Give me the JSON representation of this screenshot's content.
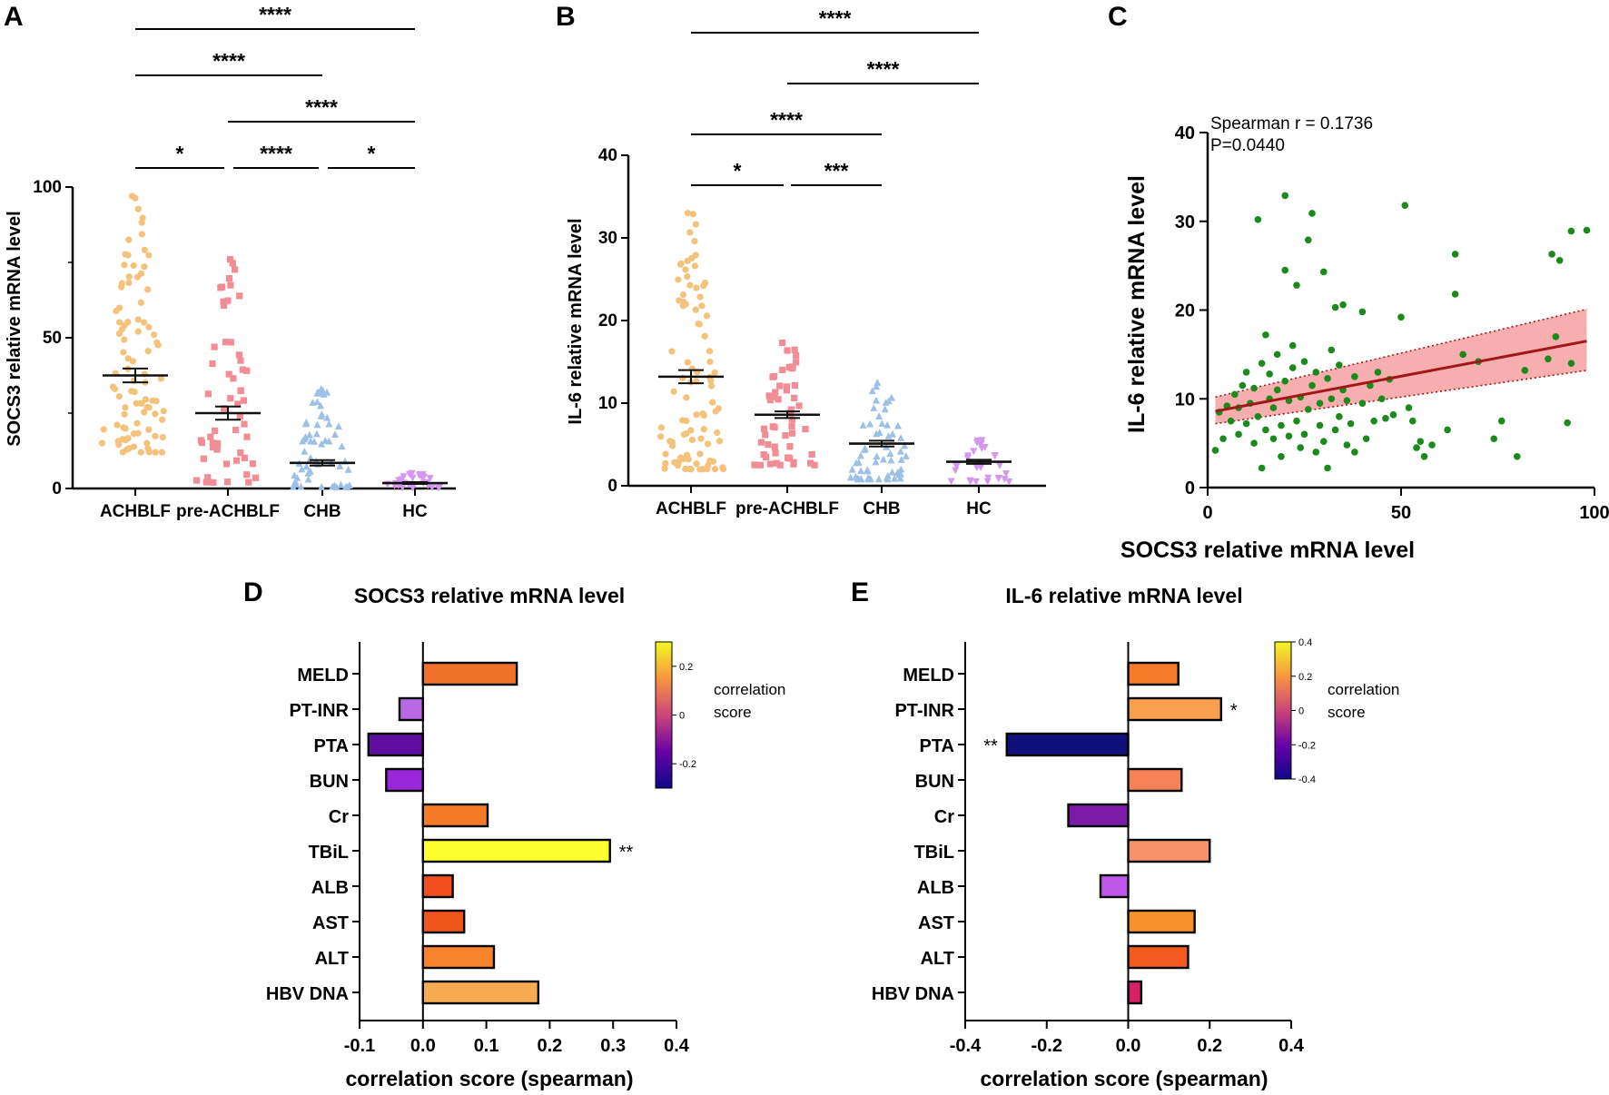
{
  "figure": {
    "panel_labels": [
      "A",
      "B",
      "C",
      "D",
      "E"
    ]
  },
  "chart_data": [
    {
      "panel": "A",
      "type": "scatter",
      "subtype": "dot-plot-mean-sem",
      "ylabel": "SOCS3  relative mRNA level",
      "ylim": [
        0,
        100
      ],
      "yticks": [
        0,
        50,
        100
      ],
      "categories": [
        "ACHBLF",
        "pre-ACHBLF",
        "CHB",
        "HC"
      ],
      "series": [
        {
          "name": "ACHBLF",
          "color": "#f4c27a",
          "marker": "circle",
          "n": 92,
          "mean": 37.5,
          "sem": 2.3,
          "min": 12,
          "max": 97
        },
        {
          "name": "pre-ACHBLF",
          "color": "#f28c95",
          "marker": "square",
          "n": 55,
          "mean": 25,
          "sem": 2.2,
          "min": 2,
          "max": 76
        },
        {
          "name": "CHB",
          "color": "#9dc0e6",
          "marker": "triangle",
          "n": 60,
          "mean": 8.5,
          "sem": 0.9,
          "min": 0.5,
          "max": 33
        },
        {
          "name": "HC",
          "color": "#d596f0",
          "marker": "triangle-down",
          "n": 30,
          "mean": 1.8,
          "sem": 0.3,
          "min": 0.2,
          "max": 5
        }
      ],
      "comparisons": [
        {
          "from": 0,
          "to": 3,
          "label": "****"
        },
        {
          "from": 0,
          "to": 2,
          "label": "****"
        },
        {
          "from": 1,
          "to": 3,
          "label": "****"
        },
        {
          "from": 0,
          "to": 1,
          "label": "*"
        },
        {
          "from": 1,
          "to": 2,
          "label": "****"
        },
        {
          "from": 2,
          "to": 3,
          "label": "*"
        }
      ]
    },
    {
      "panel": "B",
      "type": "scatter",
      "subtype": "dot-plot-mean-sem",
      "ylabel": "IL-6  relative mRNA level",
      "ylim": [
        0,
        40
      ],
      "yticks": [
        0,
        10,
        20,
        30,
        40
      ],
      "categories": [
        "ACHBLF",
        "pre-ACHBLF",
        "CHB",
        "HC"
      ],
      "series": [
        {
          "name": "ACHBLF",
          "color": "#f4c27a",
          "marker": "circle",
          "n": 92,
          "mean": 13.2,
          "sem": 0.8,
          "min": 2,
          "max": 33
        },
        {
          "name": "pre-ACHBLF",
          "color": "#f28c95",
          "marker": "square",
          "n": 55,
          "mean": 8.6,
          "sem": 0.4,
          "min": 2.5,
          "max": 17.3
        },
        {
          "name": "CHB",
          "color": "#9dc0e6",
          "marker": "triangle",
          "n": 60,
          "mean": 5.1,
          "sem": 0.35,
          "min": 0.8,
          "max": 12.5
        },
        {
          "name": "HC",
          "color": "#d596f0",
          "marker": "triangle-down",
          "n": 30,
          "mean": 2.9,
          "sem": 0.25,
          "min": 0.5,
          "max": 5.5
        }
      ],
      "comparisons": [
        {
          "from": 0,
          "to": 3,
          "label": "****"
        },
        {
          "from": 1,
          "to": 3,
          "label": "****"
        },
        {
          "from": 0,
          "to": 2,
          "label": "****"
        },
        {
          "from": 0,
          "to": 1,
          "label": "*"
        },
        {
          "from": 1,
          "to": 2,
          "label": "***"
        }
      ]
    },
    {
      "panel": "C",
      "type": "scatter",
      "xlabel": "SOCS3 relative mRNA level",
      "ylabel": "IL-6 relative mRNA level",
      "xlim": [
        0,
        100
      ],
      "ylim": [
        0,
        40
      ],
      "xticks": [
        0,
        50,
        100
      ],
      "yticks": [
        0,
        10,
        20,
        30,
        40
      ],
      "annotation": [
        "Spearman r = 0.1736",
        "P=0.0440"
      ],
      "point_color": "#1a8a1a",
      "fit": {
        "x": [
          2,
          98
        ],
        "y": [
          8.6,
          16.5
        ],
        "ci_low": [
          7.2,
          13.2
        ],
        "ci_high": [
          10.2,
          20.1
        ],
        "color": "#a01818",
        "band_color": "#f4a0a0"
      },
      "points": [
        [
          2,
          4.2
        ],
        [
          3,
          8.5
        ],
        [
          4,
          5.5
        ],
        [
          5,
          9.2
        ],
        [
          6,
          7.5
        ],
        [
          7,
          10.5
        ],
        [
          8,
          6.0
        ],
        [
          8,
          9.0
        ],
        [
          9,
          11.5
        ],
        [
          10,
          7.2
        ],
        [
          10,
          13.0
        ],
        [
          11,
          9.5
        ],
        [
          12,
          5.0
        ],
        [
          12,
          11.2
        ],
        [
          13,
          8.0
        ],
        [
          13,
          30.2
        ],
        [
          14,
          2.2
        ],
        [
          14,
          14.0
        ],
        [
          15,
          17.2
        ],
        [
          15,
          6.5
        ],
        [
          16,
          10.0
        ],
        [
          16,
          12.8
        ],
        [
          17,
          5.5
        ],
        [
          17,
          9.0
        ],
        [
          18,
          11.0
        ],
        [
          18,
          15.0
        ],
        [
          19,
          3.5
        ],
        [
          19,
          7.0
        ],
        [
          20,
          12.0
        ],
        [
          20,
          24.5
        ],
        [
          20,
          32.9
        ],
        [
          21,
          5.8
        ],
        [
          21,
          9.8
        ],
        [
          22,
          13.5
        ],
        [
          22,
          16.0
        ],
        [
          23,
          7.5
        ],
        [
          23,
          22.8
        ],
        [
          24,
          10.2
        ],
        [
          24,
          4.5
        ],
        [
          25,
          6.0
        ],
        [
          25,
          14.2
        ],
        [
          26,
          8.8
        ],
        [
          26,
          27.9
        ],
        [
          27,
          11.5
        ],
        [
          27,
          30.9
        ],
        [
          28,
          4.0
        ],
        [
          28,
          13.0
        ],
        [
          29,
          7.0
        ],
        [
          29,
          9.5
        ],
        [
          30,
          5.2
        ],
        [
          30,
          24.3
        ],
        [
          31,
          12.3
        ],
        [
          31,
          2.2
        ],
        [
          32,
          10.0
        ],
        [
          32,
          15.5
        ],
        [
          33,
          6.5
        ],
        [
          33,
          20.3
        ],
        [
          34,
          8.0
        ],
        [
          34,
          13.8
        ],
        [
          35,
          11.0
        ],
        [
          35,
          20.6
        ],
        [
          36,
          4.8
        ],
        [
          36,
          9.8
        ],
        [
          37,
          7.2
        ],
        [
          38,
          12.5
        ],
        [
          38,
          4.0
        ],
        [
          40,
          9.5
        ],
        [
          40,
          19.8
        ],
        [
          41,
          5.5
        ],
        [
          42,
          11.5
        ],
        [
          43,
          7.5
        ],
        [
          44,
          13.0
        ],
        [
          45,
          10.0
        ],
        [
          46,
          7.8
        ],
        [
          47,
          12.2
        ],
        [
          48,
          8.2
        ],
        [
          50,
          19.2
        ],
        [
          51,
          31.8
        ],
        [
          52,
          9.0
        ],
        [
          53,
          7.5
        ],
        [
          54,
          4.5
        ],
        [
          55,
          5.2
        ],
        [
          56,
          3.5
        ],
        [
          58,
          4.8
        ],
        [
          62,
          6.5
        ],
        [
          64,
          21.8
        ],
        [
          64,
          26.3
        ],
        [
          66,
          15.0
        ],
        [
          70,
          14.2
        ],
        [
          74,
          5.5
        ],
        [
          76,
          7.5
        ],
        [
          80,
          3.5
        ],
        [
          82,
          13.2
        ],
        [
          88,
          14.5
        ],
        [
          89,
          26.3
        ],
        [
          90,
          17.0
        ],
        [
          91,
          25.6
        ],
        [
          93,
          7.3
        ],
        [
          94,
          14.0
        ],
        [
          94,
          28.9
        ],
        [
          98,
          29.0
        ]
      ]
    },
    {
      "panel": "D",
      "type": "bar",
      "orientation": "horizontal",
      "title": "SOCS3 relative mRNA level",
      "xlabel": "correlation score (spearman)",
      "xlim": [
        -0.1,
        0.4
      ],
      "xticks": [
        -0.1,
        0.0,
        0.1,
        0.2,
        0.3,
        0.4
      ],
      "xticklabels": [
        "-0.1",
        "0.0",
        "0.1",
        "0.2",
        "0.3",
        "0.4"
      ],
      "categories": [
        "MELD",
        "PT-INR",
        "PTA",
        "BUN",
        "Cr",
        "TBiL",
        "ALB",
        "AST",
        "ALT",
        "HBV DNA"
      ],
      "values": [
        0.148,
        -0.037,
        -0.086,
        -0.058,
        0.102,
        0.295,
        0.047,
        0.065,
        0.112,
        0.182
      ],
      "colors": [
        "#f0722a",
        "#b968e6",
        "#5e0d9e",
        "#9a26da",
        "#f47a26",
        "#ffff30",
        "#f0501e",
        "#f0561c",
        "#f7842a",
        "#f6ab52"
      ],
      "significance": [
        "",
        "",
        "",
        "",
        "",
        "**",
        "",
        "",
        "",
        ""
      ],
      "colorbar": {
        "title": [
          "correlation",
          "score"
        ],
        "ticks": [
          "0.2",
          "0",
          "-0.2"
        ],
        "range": [
          -0.3,
          0.3
        ]
      }
    },
    {
      "panel": "E",
      "type": "bar",
      "orientation": "horizontal",
      "title": "IL-6 relative mRNA level",
      "xlabel": "correlation score (spearman)",
      "xlim": [
        -0.4,
        0.4
      ],
      "xticks": [
        -0.4,
        -0.2,
        0.0,
        0.2,
        0.4
      ],
      "xticklabels": [
        "-0.4",
        "-0.2",
        "0.0",
        "0.2",
        "0.4"
      ],
      "categories": [
        "MELD",
        "PT-INR",
        "PTA",
        "BUN",
        "Cr",
        "TBiL",
        "ALB",
        "AST",
        "ALT",
        "HBV DNA"
      ],
      "values": [
        0.123,
        0.228,
        -0.298,
        0.131,
        -0.147,
        0.2,
        -0.068,
        0.163,
        0.147,
        0.032
      ],
      "colors": [
        "#f57a2a",
        "#f8a050",
        "#10107a",
        "#f58256",
        "#7c1aaa",
        "#f59268",
        "#c056e8",
        "#f8902a",
        "#f25a1e",
        "#d62068"
      ],
      "significance": [
        "",
        "*",
        "**",
        "",
        "",
        "",
        "",
        "",
        "",
        ""
      ],
      "colorbar": {
        "title": [
          "correlation",
          "score"
        ],
        "ticks": [
          "0.4",
          "0.2",
          "0",
          "-0.2",
          "-0.4"
        ],
        "range": [
          -0.4,
          0.4
        ]
      }
    }
  ]
}
